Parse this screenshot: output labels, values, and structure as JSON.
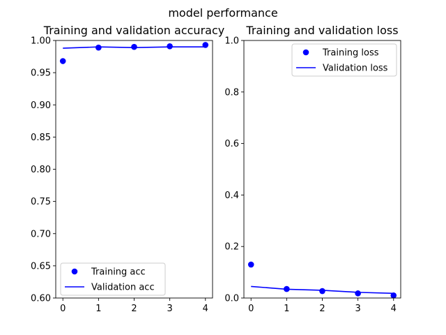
{
  "suptitle": "model performance",
  "chart_data": [
    {
      "type": "line",
      "title": "Training and validation accuracy",
      "xlabel": "",
      "ylabel": "",
      "x": [
        0,
        1,
        2,
        3,
        4
      ],
      "xlim": [
        -0.2,
        4.2
      ],
      "ylim": [
        0.6,
        1.0
      ],
      "xticks": [
        0,
        1,
        2,
        3,
        4
      ],
      "yticks": [
        0.6,
        0.65,
        0.7,
        0.75,
        0.8,
        0.85,
        0.9,
        0.95,
        1.0
      ],
      "ytick_labels": [
        "0.60",
        "0.65",
        "0.70",
        "0.75",
        "0.80",
        "0.85",
        "0.90",
        "0.95",
        "1.00"
      ],
      "grid": false,
      "legend_position": "lower-left",
      "series": [
        {
          "name": "Training acc",
          "style": "markers",
          "color": "#0000ff",
          "values": [
            0.968,
            0.989,
            0.99,
            0.991,
            0.993
          ]
        },
        {
          "name": "Validation acc",
          "style": "line",
          "color": "#0000ff",
          "values": [
            0.988,
            0.99,
            0.989,
            0.99,
            0.99
          ]
        }
      ]
    },
    {
      "type": "line",
      "title": "Training and validation loss",
      "xlabel": "",
      "ylabel": "",
      "x": [
        0,
        1,
        2,
        3,
        4
      ],
      "xlim": [
        -0.2,
        4.2
      ],
      "ylim": [
        0.0,
        1.0
      ],
      "xticks": [
        0,
        1,
        2,
        3,
        4
      ],
      "yticks": [
        0.0,
        0.2,
        0.4,
        0.6,
        0.8,
        1.0
      ],
      "ytick_labels": [
        "0.0",
        "0.2",
        "0.4",
        "0.6",
        "0.8",
        "1.0"
      ],
      "grid": false,
      "legend_position": "upper-right",
      "series": [
        {
          "name": "Training loss",
          "style": "markers",
          "color": "#0000ff",
          "values": [
            0.13,
            0.035,
            0.027,
            0.018,
            0.01
          ]
        },
        {
          "name": "Validation loss",
          "style": "line",
          "color": "#0000ff",
          "values": [
            0.045,
            0.034,
            0.03,
            0.022,
            0.018
          ]
        }
      ]
    }
  ]
}
